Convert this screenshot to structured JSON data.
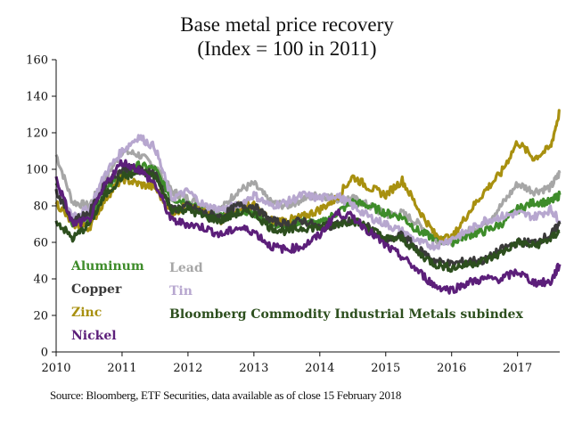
{
  "chart_data": {
    "type": "line",
    "title": "Base metal price recovery",
    "subtitle": "(Index = 100 in 2011)",
    "xlabel": "",
    "ylabel": "",
    "xlim": [
      2010,
      2017.64
    ],
    "ylim": [
      0,
      160
    ],
    "x_ticks": [
      2010,
      2011,
      2012,
      2013,
      2014,
      2015,
      2016,
      2017
    ],
    "x_tick_labels": [
      "2010",
      "2011",
      "2012",
      "2013",
      "2014",
      "2015",
      "2016",
      "2017"
    ],
    "y_ticks": [
      0,
      20,
      40,
      60,
      80,
      100,
      120,
      140,
      160
    ],
    "y_tick_labels": [
      "0",
      "20",
      "40",
      "60",
      "80",
      "100",
      "120",
      "140",
      "160"
    ],
    "grid": false,
    "legend_placement": "bottom-left inside plot",
    "x": [
      2010.0,
      2010.25,
      2010.5,
      2010.75,
      2011.0,
      2011.25,
      2011.5,
      2011.75,
      2012.0,
      2012.25,
      2012.5,
      2012.75,
      2013.0,
      2013.25,
      2013.5,
      2013.75,
      2014.0,
      2014.25,
      2014.5,
      2014.75,
      2015.0,
      2015.25,
      2015.5,
      2015.75,
      2016.0,
      2016.25,
      2016.5,
      2016.75,
      2017.0,
      2017.25,
      2017.5,
      2017.64
    ],
    "series": [
      {
        "name": "Lead",
        "color": "#a6a6a6",
        "values": [
          108,
          82,
          80,
          95,
          110,
          108,
          102,
          88,
          84,
          80,
          78,
          88,
          92,
          82,
          80,
          84,
          86,
          84,
          84,
          80,
          75,
          76,
          70,
          62,
          60,
          66,
          70,
          80,
          92,
          88,
          90,
          98
        ]
      },
      {
        "name": "Aluminum",
        "color": "#3e8c2a",
        "values": [
          92,
          70,
          74,
          88,
          98,
          102,
          100,
          84,
          82,
          76,
          74,
          78,
          76,
          70,
          70,
          72,
          70,
          76,
          82,
          80,
          76,
          74,
          66,
          62,
          60,
          64,
          66,
          70,
          78,
          82,
          82,
          86
        ]
      },
      {
        "name": "Zinc",
        "color": "#a8900f",
        "values": [
          82,
          70,
          68,
          84,
          95,
          92,
          90,
          76,
          80,
          76,
          72,
          80,
          80,
          72,
          72,
          74,
          78,
          84,
          96,
          90,
          86,
          94,
          78,
          64,
          62,
          76,
          88,
          98,
          115,
          106,
          112,
          132
        ]
      },
      {
        "name": "Tin",
        "color": "#b7a7cf",
        "values": [
          90,
          75,
          78,
          98,
          110,
          118,
          112,
          84,
          88,
          80,
          78,
          80,
          86,
          80,
          82,
          86,
          84,
          86,
          80,
          74,
          70,
          66,
          60,
          58,
          62,
          66,
          72,
          74,
          76,
          74,
          78,
          72
        ]
      },
      {
        "name": "Copper",
        "color": "#3a3a3a",
        "values": [
          88,
          72,
          76,
          92,
          100,
          100,
          98,
          78,
          80,
          76,
          74,
          80,
          80,
          72,
          70,
          72,
          68,
          70,
          72,
          68,
          60,
          64,
          56,
          50,
          48,
          50,
          50,
          56,
          60,
          60,
          64,
          70
        ]
      },
      {
        "name": "Bloomberg Commodity Industrial Metals subindex",
        "color": "#2d4f1e",
        "values": [
          72,
          62,
          70,
          86,
          96,
          98,
          96,
          78,
          78,
          74,
          72,
          76,
          76,
          68,
          66,
          68,
          68,
          70,
          72,
          68,
          62,
          62,
          54,
          48,
          46,
          48,
          50,
          54,
          60,
          58,
          62,
          66
        ]
      },
      {
        "name": "Nickel",
        "color": "#5c1f7a",
        "values": [
          95,
          70,
          72,
          92,
          104,
          100,
          92,
          72,
          70,
          68,
          64,
          68,
          66,
          58,
          56,
          58,
          64,
          76,
          74,
          66,
          58,
          52,
          44,
          36,
          34,
          38,
          40,
          40,
          44,
          38,
          38,
          48
        ]
      }
    ],
    "legend": [
      {
        "label": "Aluminum",
        "color": "#3e8c2a"
      },
      {
        "label": "Copper",
        "color": "#3a3a3a"
      },
      {
        "label": "Zinc",
        "color": "#a8900f"
      },
      {
        "label": "Nickel",
        "color": "#5c1f7a"
      },
      {
        "label": "Lead",
        "color": "#a6a6a6"
      },
      {
        "label": "Tin",
        "color": "#b7a7cf"
      },
      {
        "label": "Bloomberg Commodity Industrial Metals subindex",
        "color": "#2d4f1e"
      }
    ]
  },
  "header": {
    "title_line1": "Base metal price recovery",
    "title_line2": "(Index = 100 in 2011)"
  },
  "footer": {
    "source": "Source: Bloomberg, ETF Securities, data available as of close 15 February 2018"
  }
}
